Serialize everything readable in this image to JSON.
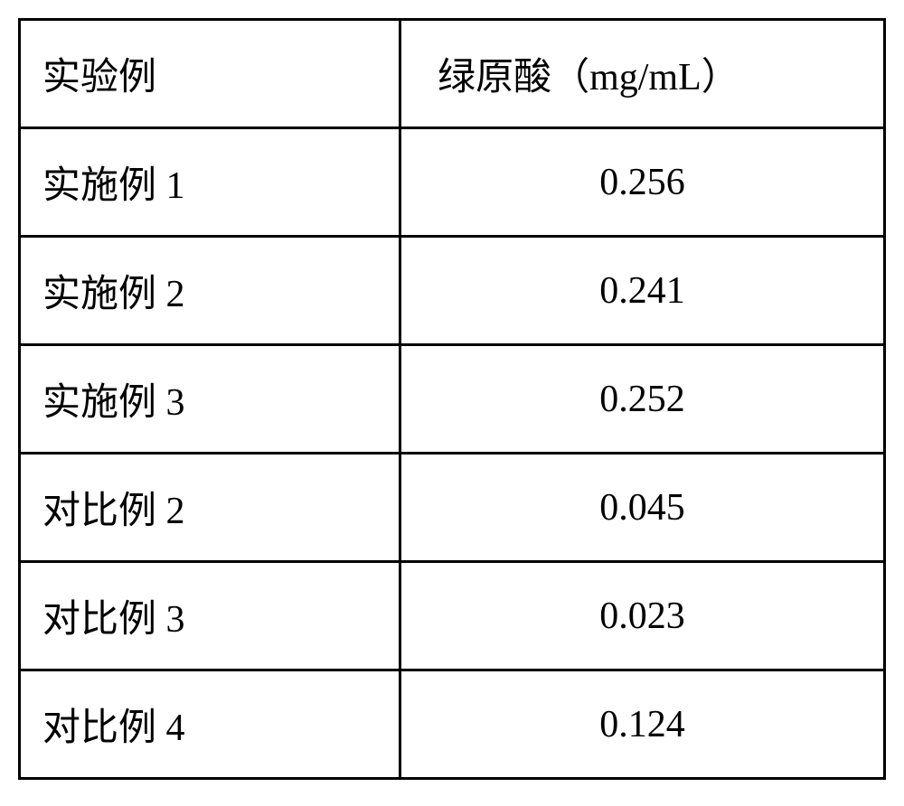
{
  "table": {
    "type": "table",
    "columns": [
      {
        "header": "实验例",
        "align": "left",
        "width_pct": 44
      },
      {
        "header": "绿原酸（mg/mL）",
        "align": "center",
        "width_pct": 56
      }
    ],
    "rows": [
      {
        "label": "实施例 1",
        "value": "0.256"
      },
      {
        "label": "实施例 2",
        "value": "0.241"
      },
      {
        "label": "实施例 3",
        "value": "0.252"
      },
      {
        "label": "对比例 2",
        "value": "0.045"
      },
      {
        "label": "对比例 3",
        "value": "0.023"
      },
      {
        "label": "对比例 4",
        "value": "0.124"
      }
    ],
    "border_color": "#000000",
    "border_width": 3,
    "background_color": "#ffffff",
    "text_color": "#000000",
    "font_size": 42,
    "font_family": "SimSun",
    "cell_padding": 28
  }
}
